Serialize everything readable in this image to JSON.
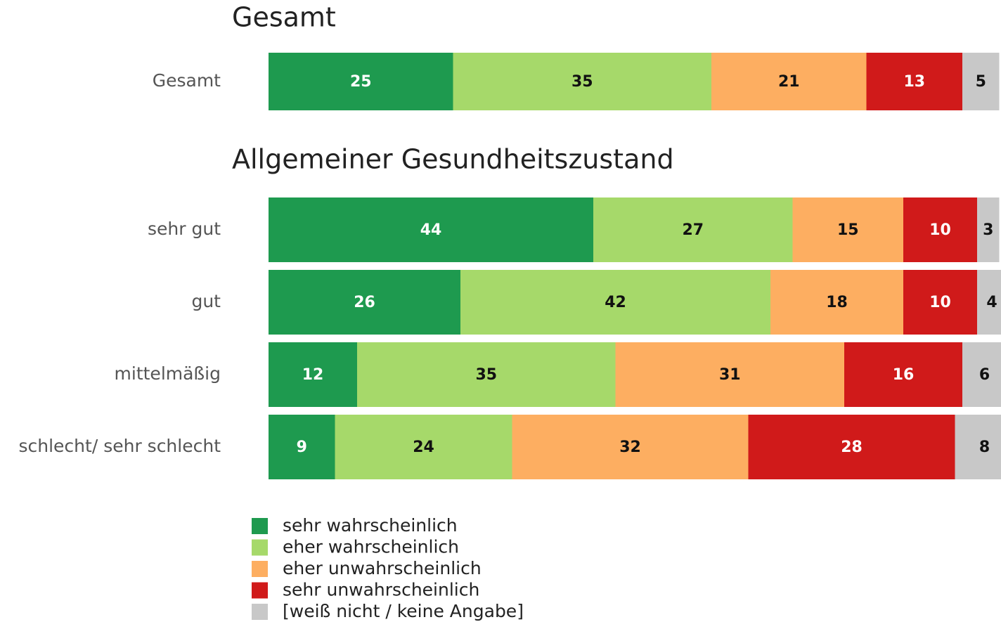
{
  "chart_data": [
    {
      "type": "stacked_bar_h",
      "title": "Gesamt",
      "categories": [
        "Gesamt"
      ],
      "series": [
        {
          "name": "sehr wahrscheinlich",
          "color": "#1e9a4f",
          "label_color": "#ffffff",
          "values": [
            25
          ]
        },
        {
          "name": "eher wahrscheinlich",
          "color": "#a6d96a",
          "label_color": "#111111",
          "values": [
            35
          ]
        },
        {
          "name": "eher unwahrscheinlich",
          "color": "#fdae61",
          "label_color": "#111111",
          "values": [
            21
          ]
        },
        {
          "name": "sehr unwahrscheinlich",
          "color": "#d01a1a",
          "label_color": "#ffffff",
          "values": [
            13
          ]
        },
        {
          "name": "[weiß nicht / keine Angabe]",
          "color": "#c8c8c8",
          "label_color": "#111111",
          "values": [
            5
          ]
        }
      ]
    },
    {
      "type": "stacked_bar_h",
      "title": "Allgemeiner Gesundheitszustand",
      "categories": [
        "sehr gut",
        "gut",
        "mittelmäßig",
        "schlecht/ sehr schlecht"
      ],
      "series": [
        {
          "color": "#1e9a4f",
          "label_color": "#ffffff",
          "values": [
            44,
            26,
            12,
            9
          ]
        },
        {
          "color": "#a6d96a",
          "label_color": "#111111",
          "values": [
            27,
            42,
            35,
            24
          ]
        },
        {
          "color": "#fdae61",
          "label_color": "#111111",
          "values": [
            15,
            18,
            31,
            32
          ]
        },
        {
          "color": "#d01a1a",
          "label_color": "#ffffff",
          "values": [
            10,
            10,
            16,
            28
          ]
        },
        {
          "color": "#c8c8c8",
          "label_color": "#111111",
          "values": [
            3,
            4,
            6,
            8
          ]
        }
      ]
    }
  ]
}
